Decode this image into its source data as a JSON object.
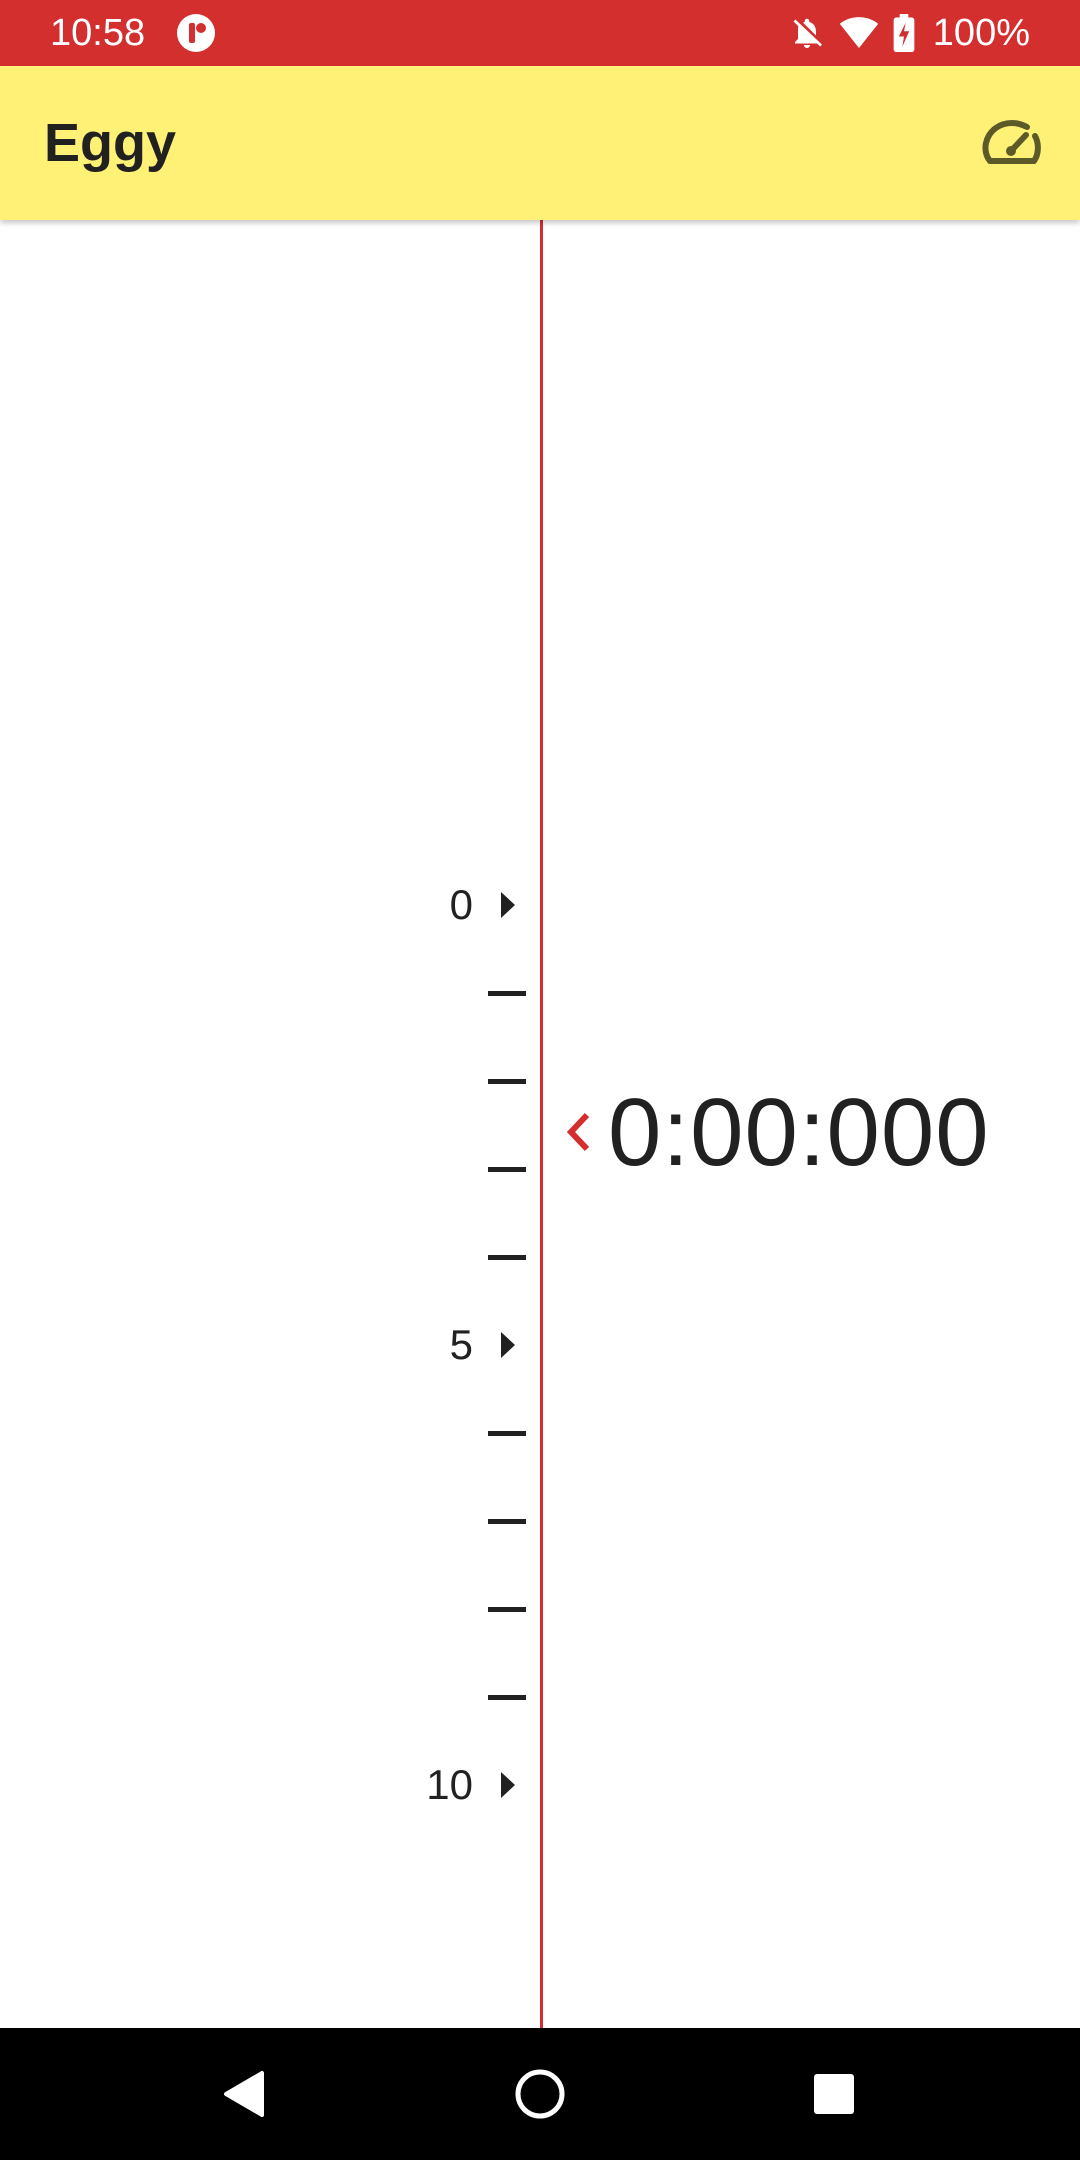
{
  "status_bar": {
    "time": "10:58",
    "battery": "100%",
    "icons": [
      "app-notification-icon",
      "notifications-off-icon",
      "wifi-icon",
      "battery-charging-icon"
    ]
  },
  "app_bar": {
    "title": "Eggy",
    "action_icon": "speedometer-icon"
  },
  "timeline": {
    "ticks": [
      {
        "label": "0",
        "major": true
      },
      {
        "label": "",
        "major": false
      },
      {
        "label": "",
        "major": false
      },
      {
        "label": "",
        "major": false
      },
      {
        "label": "",
        "major": false
      },
      {
        "label": "5",
        "major": true
      },
      {
        "label": "",
        "major": false
      },
      {
        "label": "",
        "major": false
      },
      {
        "label": "",
        "major": false
      },
      {
        "label": "",
        "major": false
      },
      {
        "label": "10",
        "major": true
      }
    ],
    "timer": "0:00:000"
  },
  "nav_bar": {
    "icons": [
      "back-icon",
      "home-icon",
      "recents-icon"
    ]
  },
  "colors": {
    "status_bar": "#d32f2f",
    "app_bar": "#fff176",
    "accent": "#d32f2f",
    "text": "#212121"
  }
}
